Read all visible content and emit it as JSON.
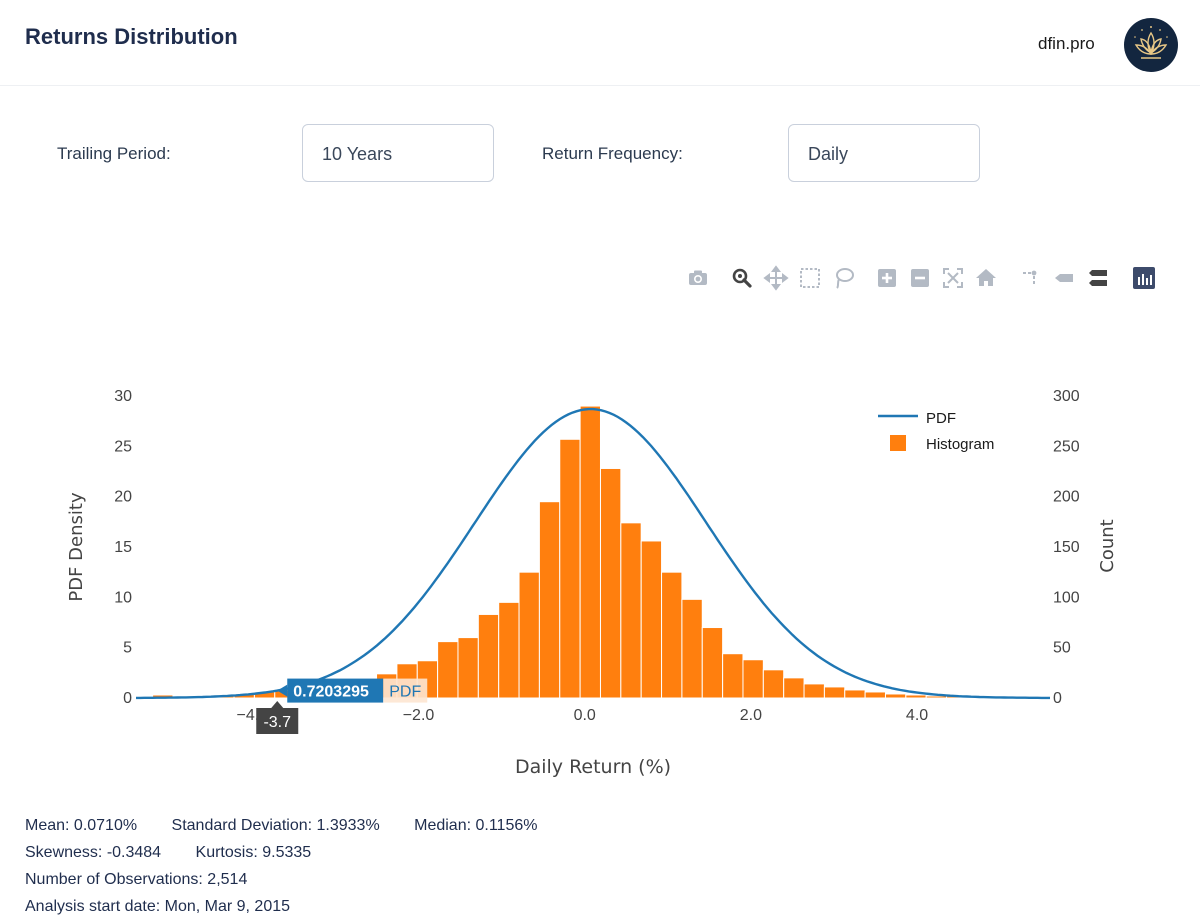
{
  "header": {
    "title": "Returns Distribution",
    "brand": "dfin.pro"
  },
  "controls": {
    "trailing_label": "Trailing Period:",
    "trailing_value": "10 Years",
    "frequency_label": "Return Frequency:",
    "frequency_value": "Daily"
  },
  "modebar": [
    "camera-icon",
    "zoom-icon",
    "pan-icon",
    "box-select-icon",
    "lasso-select-icon",
    "zoom-in-icon",
    "zoom-out-icon",
    "autoscale-icon",
    "reset-axes-icon",
    "spike-lines-icon",
    "hover-closest-icon",
    "hover-compare-icon",
    "plotly-logo-icon"
  ],
  "chart_data": {
    "type": "bar",
    "xlabel": "Daily Return (%)",
    "ylabel_left": "PDF Density",
    "ylabel_right": "Count",
    "xlim": [
      -5.4,
      5.6
    ],
    "ylim_left": [
      0,
      30
    ],
    "ylim_right": [
      0,
      300
    ],
    "x_ticks": [
      -4.0,
      -2.0,
      0.0,
      2.0,
      4.0
    ],
    "x_tick_labels": [
      "−4.0",
      "−2.0",
      "0.0",
      "2.0",
      "4.0"
    ],
    "y_left_ticks": [
      0,
      5,
      10,
      15,
      20,
      25,
      30
    ],
    "y_right_ticks": [
      0,
      50,
      100,
      150,
      200,
      250,
      300
    ],
    "legend_position": "top-right",
    "series": [
      {
        "name": "PDF",
        "kind": "line",
        "mean": 0.071,
        "std": 1.3933,
        "peak": 28.7,
        "color": "#1f77b4"
      },
      {
        "name": "Histogram",
        "kind": "bar",
        "color": "#ff7f0e",
        "bin_width": 0.245,
        "bins_start": [
          -5.2,
          -4.955,
          -4.71,
          -4.465,
          -4.22,
          -3.975,
          -3.73,
          -3.485,
          -3.24,
          -2.995,
          -2.75,
          -2.505,
          -2.26,
          -2.015,
          -1.77,
          -1.525,
          -1.28,
          -1.035,
          -0.79,
          -0.545,
          -0.3,
          -0.055,
          0.19,
          0.435,
          0.68,
          0.925,
          1.17,
          1.415,
          1.66,
          1.905,
          2.15,
          2.395,
          2.64,
          2.885,
          3.13,
          3.375,
          3.62,
          3.865,
          4.11,
          4.355,
          4.6,
          4.845,
          5.09,
          5.335
        ],
        "counts": [
          3,
          2,
          2,
          3,
          4,
          6,
          8,
          5,
          4,
          6,
          14,
          24,
          34,
          37,
          56,
          60,
          83,
          95,
          125,
          195,
          257,
          290,
          228,
          174,
          156,
          125,
          98,
          70,
          44,
          38,
          28,
          20,
          14,
          11,
          8,
          6,
          4,
          3,
          2,
          2,
          1,
          1,
          1,
          1
        ]
      }
    ]
  },
  "hover": {
    "value_label": "0.7203295",
    "series_label": "PDF",
    "x_label": "-3.7",
    "x": -3.7
  },
  "stats": {
    "mean": "Mean: 0.0710%",
    "std": "Standard Deviation: 1.3933%",
    "median": "Median: 0.1156%",
    "skewness": "Skewness: -0.3484",
    "kurtosis": "Kurtosis: 9.5335",
    "observations": "Number of Observations: 2,514",
    "start_date": "Analysis start date: Mon, Mar 9, 2015"
  }
}
